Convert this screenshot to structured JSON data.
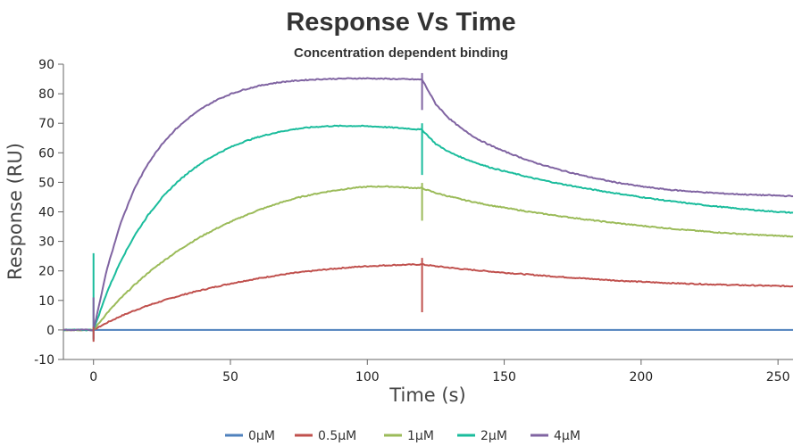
{
  "chart_data": {
    "type": "line",
    "title": "Response Vs Time",
    "subtitle": "Concentration dependent binding",
    "xlabel": "Time (s)",
    "ylabel": "Response (RU)",
    "xlim": [
      -11,
      255.5
    ],
    "ylim": [
      -10,
      90
    ],
    "xticks": [
      0,
      50,
      100,
      150,
      200,
      250
    ],
    "yticks": [
      -10,
      0,
      10,
      20,
      30,
      40,
      50,
      60,
      70,
      80,
      90
    ],
    "grid": false,
    "legend_position": "bottom",
    "x": [
      -11,
      0,
      5,
      10,
      15,
      20,
      25,
      30,
      35,
      40,
      45,
      50,
      55,
      60,
      65,
      70,
      75,
      80,
      85,
      90,
      95,
      100,
      105,
      110,
      115,
      120,
      125,
      130,
      135,
      140,
      145,
      150,
      160,
      170,
      180,
      190,
      200,
      210,
      220,
      230,
      240,
      250,
      255.5
    ],
    "series": [
      {
        "name": "0μM",
        "color": "#4f81bd",
        "values": [
          0,
          0,
          0,
          0,
          0,
          0,
          0,
          0,
          0,
          0,
          0,
          0,
          0,
          0,
          0,
          0,
          0,
          0,
          0,
          0,
          0,
          0,
          0,
          0,
          0,
          0,
          0,
          0,
          0,
          0,
          0,
          0,
          0,
          0,
          0,
          0,
          0,
          0,
          0,
          0,
          0,
          0,
          0
        ]
      },
      {
        "name": "0.5μM",
        "color": "#c0504d",
        "values": [
          0,
          0,
          2.5,
          4.7,
          6.6,
          8.3,
          9.8,
          11.2,
          12.5,
          13.6,
          14.7,
          15.7,
          16.6,
          17.4,
          18.2,
          18.9,
          19.5,
          20.0,
          20.5,
          20.9,
          21.3,
          21.6,
          21.8,
          22.0,
          22.1,
          22.2,
          21.6,
          21.1,
          20.6,
          20.2,
          19.8,
          19.4,
          18.7,
          18.0,
          17.4,
          16.8,
          16.3,
          15.9,
          15.6,
          15.3,
          15.1,
          14.9,
          14.8
        ]
      },
      {
        "name": "1μM",
        "color": "#9bbb59",
        "values": [
          0,
          0,
          5.8,
          10.8,
          15.3,
          19.4,
          23.0,
          26.3,
          29.3,
          32.0,
          34.4,
          36.6,
          38.6,
          40.5,
          42.1,
          43.6,
          44.9,
          45.9,
          46.8,
          47.5,
          48.1,
          48.5,
          48.6,
          48.5,
          48.2,
          48.0,
          46.4,
          45.2,
          44.1,
          43.1,
          42.2,
          41.4,
          39.9,
          38.6,
          37.4,
          36.3,
          35.3,
          34.4,
          33.6,
          32.9,
          32.3,
          31.9,
          31.7
        ]
      },
      {
        "name": "2μM",
        "color": "#1abc9c",
        "values": [
          0,
          0,
          13.0,
          23.5,
          32.0,
          39.0,
          44.8,
          49.6,
          53.6,
          56.9,
          59.6,
          61.9,
          63.8,
          65.3,
          66.5,
          67.5,
          68.2,
          68.7,
          69.0,
          69.1,
          69.1,
          69.0,
          68.8,
          68.5,
          68.2,
          67.8,
          63.0,
          60.2,
          58.2,
          56.5,
          55.0,
          53.8,
          51.5,
          49.6,
          47.9,
          46.4,
          45.0,
          43.7,
          42.6,
          41.6,
          40.7,
          40.0,
          39.7
        ]
      },
      {
        "name": "4μM",
        "color": "#8064a2",
        "values": [
          0,
          0,
          21.0,
          36.5,
          48.0,
          56.5,
          63.0,
          68.0,
          72.0,
          75.3,
          77.9,
          79.9,
          81.4,
          82.6,
          83.5,
          84.1,
          84.5,
          84.8,
          85.0,
          85.1,
          85.2,
          85.2,
          85.1,
          85.0,
          84.9,
          84.8,
          76.5,
          71.5,
          67.8,
          64.8,
          62.5,
          60.5,
          57.0,
          54.3,
          52.0,
          50.1,
          48.6,
          47.5,
          46.8,
          46.2,
          45.8,
          45.5,
          45.3
        ]
      }
    ],
    "spikes": [
      {
        "series": "0.5μM",
        "x": 120,
        "min": 6,
        "max": 24.4
      },
      {
        "series": "1μM",
        "x": 120,
        "min": 37,
        "max": 49.8
      },
      {
        "series": "2μM",
        "x": 120,
        "min": 52.5,
        "max": 70
      },
      {
        "series": "4μM",
        "x": 120,
        "min": 74.5,
        "max": 87
      },
      {
        "series": "2μM",
        "x": 0,
        "min": -3.5,
        "max": 26
      },
      {
        "series": "4μM",
        "x": 0,
        "min": -3,
        "max": 11
      },
      {
        "series": "0.5μM",
        "x": 0,
        "min": -4,
        "max": 1
      }
    ]
  }
}
